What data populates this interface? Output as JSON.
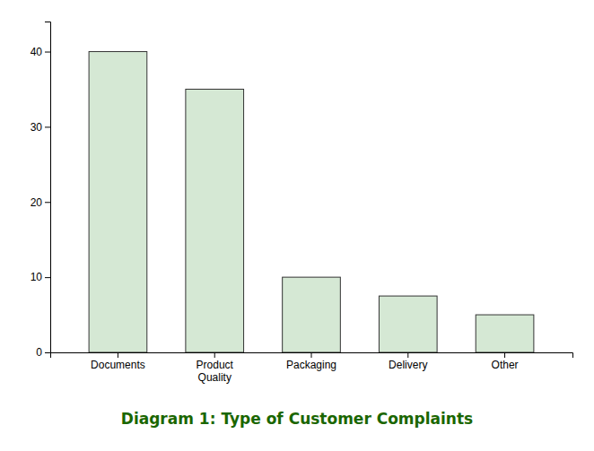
{
  "chart_data": {
    "type": "bar",
    "title": "Diagram 1: Type of Customer Complaints",
    "categories": [
      "Documents",
      "Product\nQuality",
      "Packaging",
      "Delivery",
      "Other"
    ],
    "values": [
      40,
      35,
      10,
      7.5,
      5
    ],
    "color": "#d5e8d4",
    "ylim": [
      0,
      44
    ],
    "yticks": [
      0,
      10,
      20,
      30,
      40
    ],
    "grid": false
  }
}
